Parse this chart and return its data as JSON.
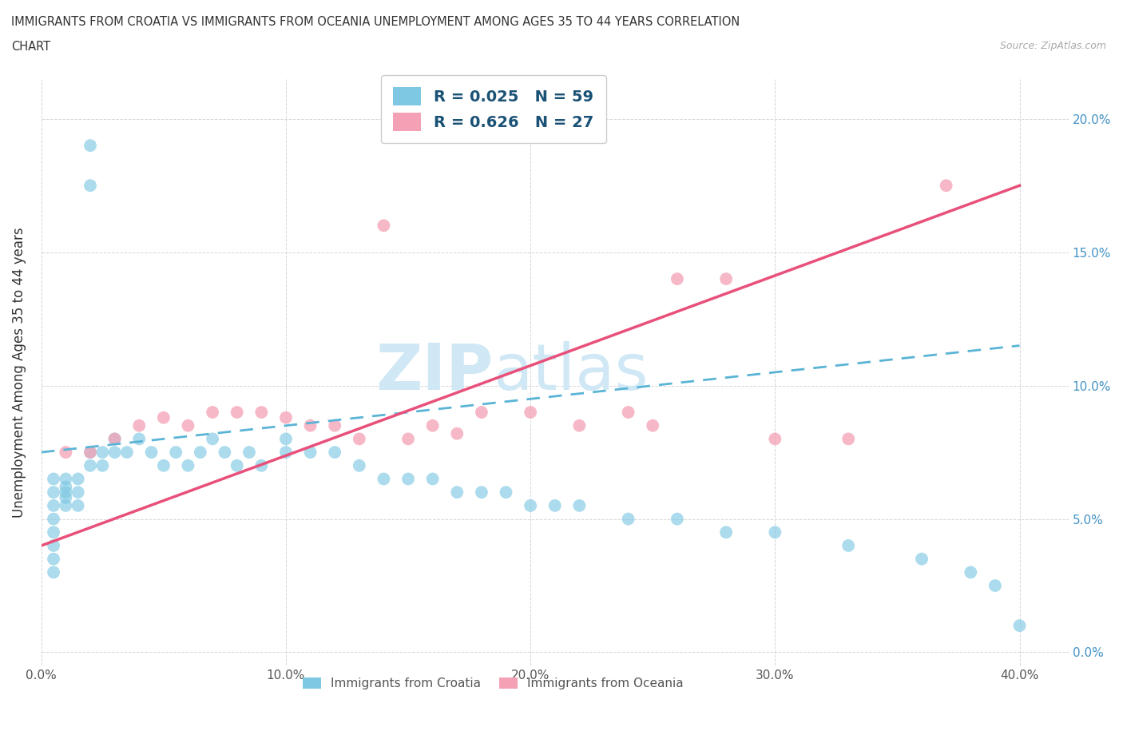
{
  "title_line1": "IMMIGRANTS FROM CROATIA VS IMMIGRANTS FROM OCEANIA UNEMPLOYMENT AMONG AGES 35 TO 44 YEARS CORRELATION",
  "title_line2": "CHART",
  "source_text": "Source: ZipAtlas.com",
  "ylabel": "Unemployment Among Ages 35 to 44 years",
  "xlim": [
    0.0,
    0.42
  ],
  "ylim": [
    -0.005,
    0.215
  ],
  "xticks": [
    0.0,
    0.1,
    0.2,
    0.3,
    0.4
  ],
  "xticklabels": [
    "0.0%",
    "10.0%",
    "20.0%",
    "30.0%",
    "40.0%"
  ],
  "yticks": [
    0.0,
    0.05,
    0.1,
    0.15,
    0.2
  ],
  "yticklabels": [
    "0.0%",
    "5.0%",
    "10.0%",
    "15.0%",
    "20.0%"
  ],
  "croatia_color": "#7ec8e3",
  "oceania_color": "#f4a0b5",
  "croatia_line_color": "#5ab4d6",
  "oceania_line_color": "#e8507a",
  "watermark_color": "#d0e8f5",
  "legend_R_N_color": "#1a5276",
  "R_croatia": 0.025,
  "N_croatia": 59,
  "R_oceania": 0.626,
  "N_oceania": 27,
  "croatia_x": [
    0.005,
    0.005,
    0.005,
    0.005,
    0.005,
    0.005,
    0.005,
    0.005,
    0.01,
    0.01,
    0.01,
    0.01,
    0.01,
    0.015,
    0.015,
    0.015,
    0.02,
    0.02,
    0.02,
    0.02,
    0.025,
    0.025,
    0.03,
    0.03,
    0.035,
    0.04,
    0.045,
    0.05,
    0.055,
    0.06,
    0.065,
    0.07,
    0.075,
    0.08,
    0.085,
    0.09,
    0.1,
    0.1,
    0.11,
    0.12,
    0.13,
    0.14,
    0.15,
    0.16,
    0.17,
    0.18,
    0.19,
    0.2,
    0.21,
    0.22,
    0.24,
    0.26,
    0.28,
    0.3,
    0.33,
    0.36,
    0.38,
    0.39,
    0.4
  ],
  "croatia_y": [
    0.065,
    0.06,
    0.055,
    0.05,
    0.045,
    0.04,
    0.035,
    0.03,
    0.065,
    0.062,
    0.06,
    0.058,
    0.055,
    0.065,
    0.06,
    0.055,
    0.19,
    0.175,
    0.075,
    0.07,
    0.075,
    0.07,
    0.08,
    0.075,
    0.075,
    0.08,
    0.075,
    0.07,
    0.075,
    0.07,
    0.075,
    0.08,
    0.075,
    0.07,
    0.075,
    0.07,
    0.08,
    0.075,
    0.075,
    0.075,
    0.07,
    0.065,
    0.065,
    0.065,
    0.06,
    0.06,
    0.06,
    0.055,
    0.055,
    0.055,
    0.05,
    0.05,
    0.045,
    0.045,
    0.04,
    0.035,
    0.03,
    0.025,
    0.01
  ],
  "oceania_x": [
    0.01,
    0.02,
    0.03,
    0.04,
    0.05,
    0.06,
    0.07,
    0.08,
    0.09,
    0.1,
    0.11,
    0.12,
    0.13,
    0.14,
    0.15,
    0.16,
    0.17,
    0.18,
    0.2,
    0.22,
    0.24,
    0.25,
    0.26,
    0.28,
    0.3,
    0.33,
    0.37
  ],
  "oceania_y": [
    0.075,
    0.075,
    0.08,
    0.085,
    0.088,
    0.085,
    0.09,
    0.09,
    0.09,
    0.088,
    0.085,
    0.085,
    0.08,
    0.16,
    0.08,
    0.085,
    0.082,
    0.09,
    0.09,
    0.085,
    0.09,
    0.085,
    0.14,
    0.14,
    0.08,
    0.08,
    0.175
  ],
  "background_color": "#ffffff",
  "grid_color": "#cccccc"
}
